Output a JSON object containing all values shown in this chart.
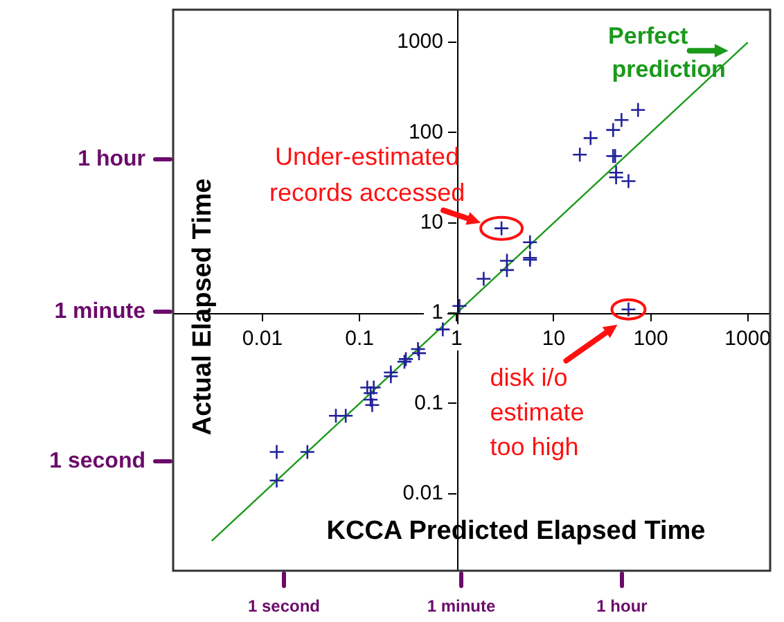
{
  "chart_data": {
    "type": "scatter",
    "xlabel": "KCCA Predicted Elapsed Time",
    "ylabel": "Actual Elapsed Time",
    "log": "xy",
    "grid": false,
    "legend": false,
    "xlim": [
      0.0012,
      1700
    ],
    "ylim": [
      0.0014,
      2300
    ],
    "xticks": [
      0.01,
      0.1,
      1,
      10,
      100,
      1000
    ],
    "yticks": [
      0.01,
      0.1,
      1,
      10,
      100,
      1000
    ],
    "series": [
      {
        "type": "scatter",
        "marker": "cross",
        "color": "#22229a",
        "x": [
          2.9,
          1.9,
          3.3,
          3.3,
          5.7,
          5.7,
          5.7,
          1.07,
          18.6,
          24,
          41,
          50,
          74,
          41,
          43,
          44,
          44,
          59,
          59,
          0.72,
          0.4,
          0.41,
          0.3,
          0.29,
          0.21,
          0.21,
          0.12,
          0.13,
          0.14,
          0.13,
          0.135,
          0.057,
          0.072,
          0.014,
          0.029,
          0.014
        ],
        "values": [
          8.7,
          2.4,
          3.8,
          3.0,
          6.1,
          4.1,
          3.9,
          1.2,
          57,
          87,
          107,
          138,
          178,
          55,
          55,
          36,
          32,
          29,
          1.1,
          0.66,
          0.4,
          0.36,
          0.31,
          0.29,
          0.22,
          0.2,
          0.15,
          0.13,
          0.15,
          0.11,
          0.096,
          0.073,
          0.073,
          0.029,
          0.029,
          0.014
        ]
      },
      {
        "type": "line",
        "name": "Perfect prediction",
        "color": "#1a9a1a",
        "line_style": "solid",
        "x": [
          0.003,
          1000
        ],
        "values": [
          0.003,
          1000
        ]
      }
    ],
    "annotations": [
      {
        "text": "Under-estimated records accessed",
        "x": 2.9,
        "y": 8.7
      },
      {
        "text": "disk i/o estimate too high",
        "x": 59,
        "y": 1.1
      },
      "1 second",
      "1 minute",
      "1 hour",
      "1 hour",
      "1 minute",
      "1 second"
    ]
  }
}
